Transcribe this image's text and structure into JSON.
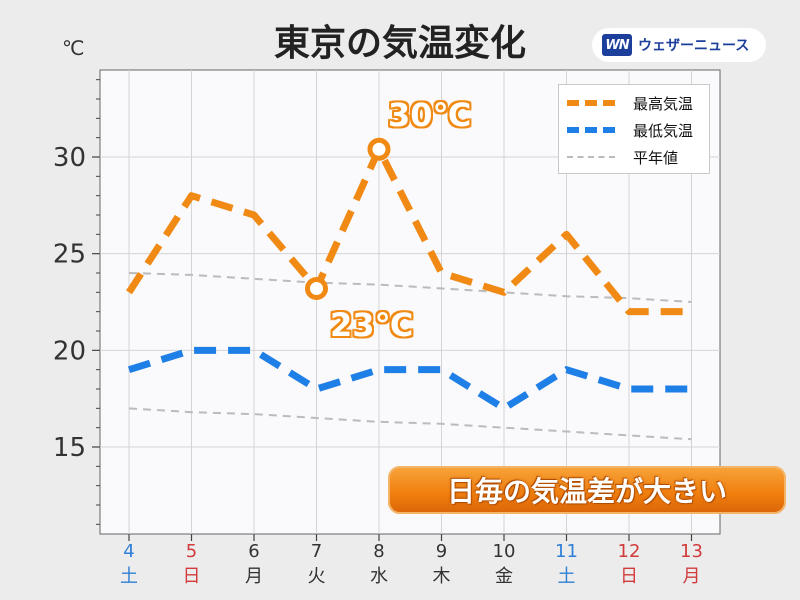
{
  "header": {
    "title": "東京の気温変化",
    "unit": "℃",
    "brand": "ウェザーニュース",
    "brand_mark": "WN"
  },
  "chart_data": {
    "type": "line",
    "title": "東京の気温変化",
    "ylabel": "℃",
    "ylim": [
      10.5,
      34.5
    ],
    "yticks": [
      15,
      20,
      25,
      30
    ],
    "grid": true,
    "legend_position": "top-right",
    "categories": [
      "4",
      "5",
      "6",
      "7",
      "8",
      "9",
      "10",
      "11",
      "12",
      "13"
    ],
    "weekdays": [
      "土",
      "日",
      "月",
      "火",
      "水",
      "木",
      "金",
      "土",
      "日",
      "月"
    ],
    "category_colors": [
      "#2f7fd6",
      "#d23b3b",
      "#333333",
      "#333333",
      "#333333",
      "#333333",
      "#333333",
      "#2f7fd6",
      "#d23b3b",
      "#d23b3b"
    ],
    "series": [
      {
        "name": "最高気温",
        "color": "#f08a14",
        "style": "dashed-thick",
        "values": [
          23,
          28,
          27,
          23.2,
          30.4,
          24,
          23,
          26,
          22,
          22
        ]
      },
      {
        "name": "最低気温",
        "color": "#1e7fe6",
        "style": "dashed-thick",
        "values": [
          19,
          20,
          20,
          18,
          19,
          19,
          17,
          19,
          18,
          18
        ]
      },
      {
        "name": "平年値",
        "color": "#bbbbbb",
        "style": "dashed-thin",
        "values": [
          24.0,
          23.9,
          23.7,
          23.5,
          23.4,
          23.2,
          23.0,
          22.8,
          22.7,
          22.5
        ]
      },
      {
        "name": "",
        "color": "#bbbbbb",
        "style": "dashed-thin",
        "values": [
          17.0,
          16.8,
          16.7,
          16.5,
          16.3,
          16.2,
          16.0,
          15.8,
          15.6,
          15.4
        ]
      }
    ],
    "annotations": [
      {
        "label": "30℃",
        "series": 0,
        "index": 4
      },
      {
        "label": "23℃",
        "series": 0,
        "index": 3
      }
    ]
  },
  "banner": {
    "text": "日毎の気温差が大きい"
  }
}
